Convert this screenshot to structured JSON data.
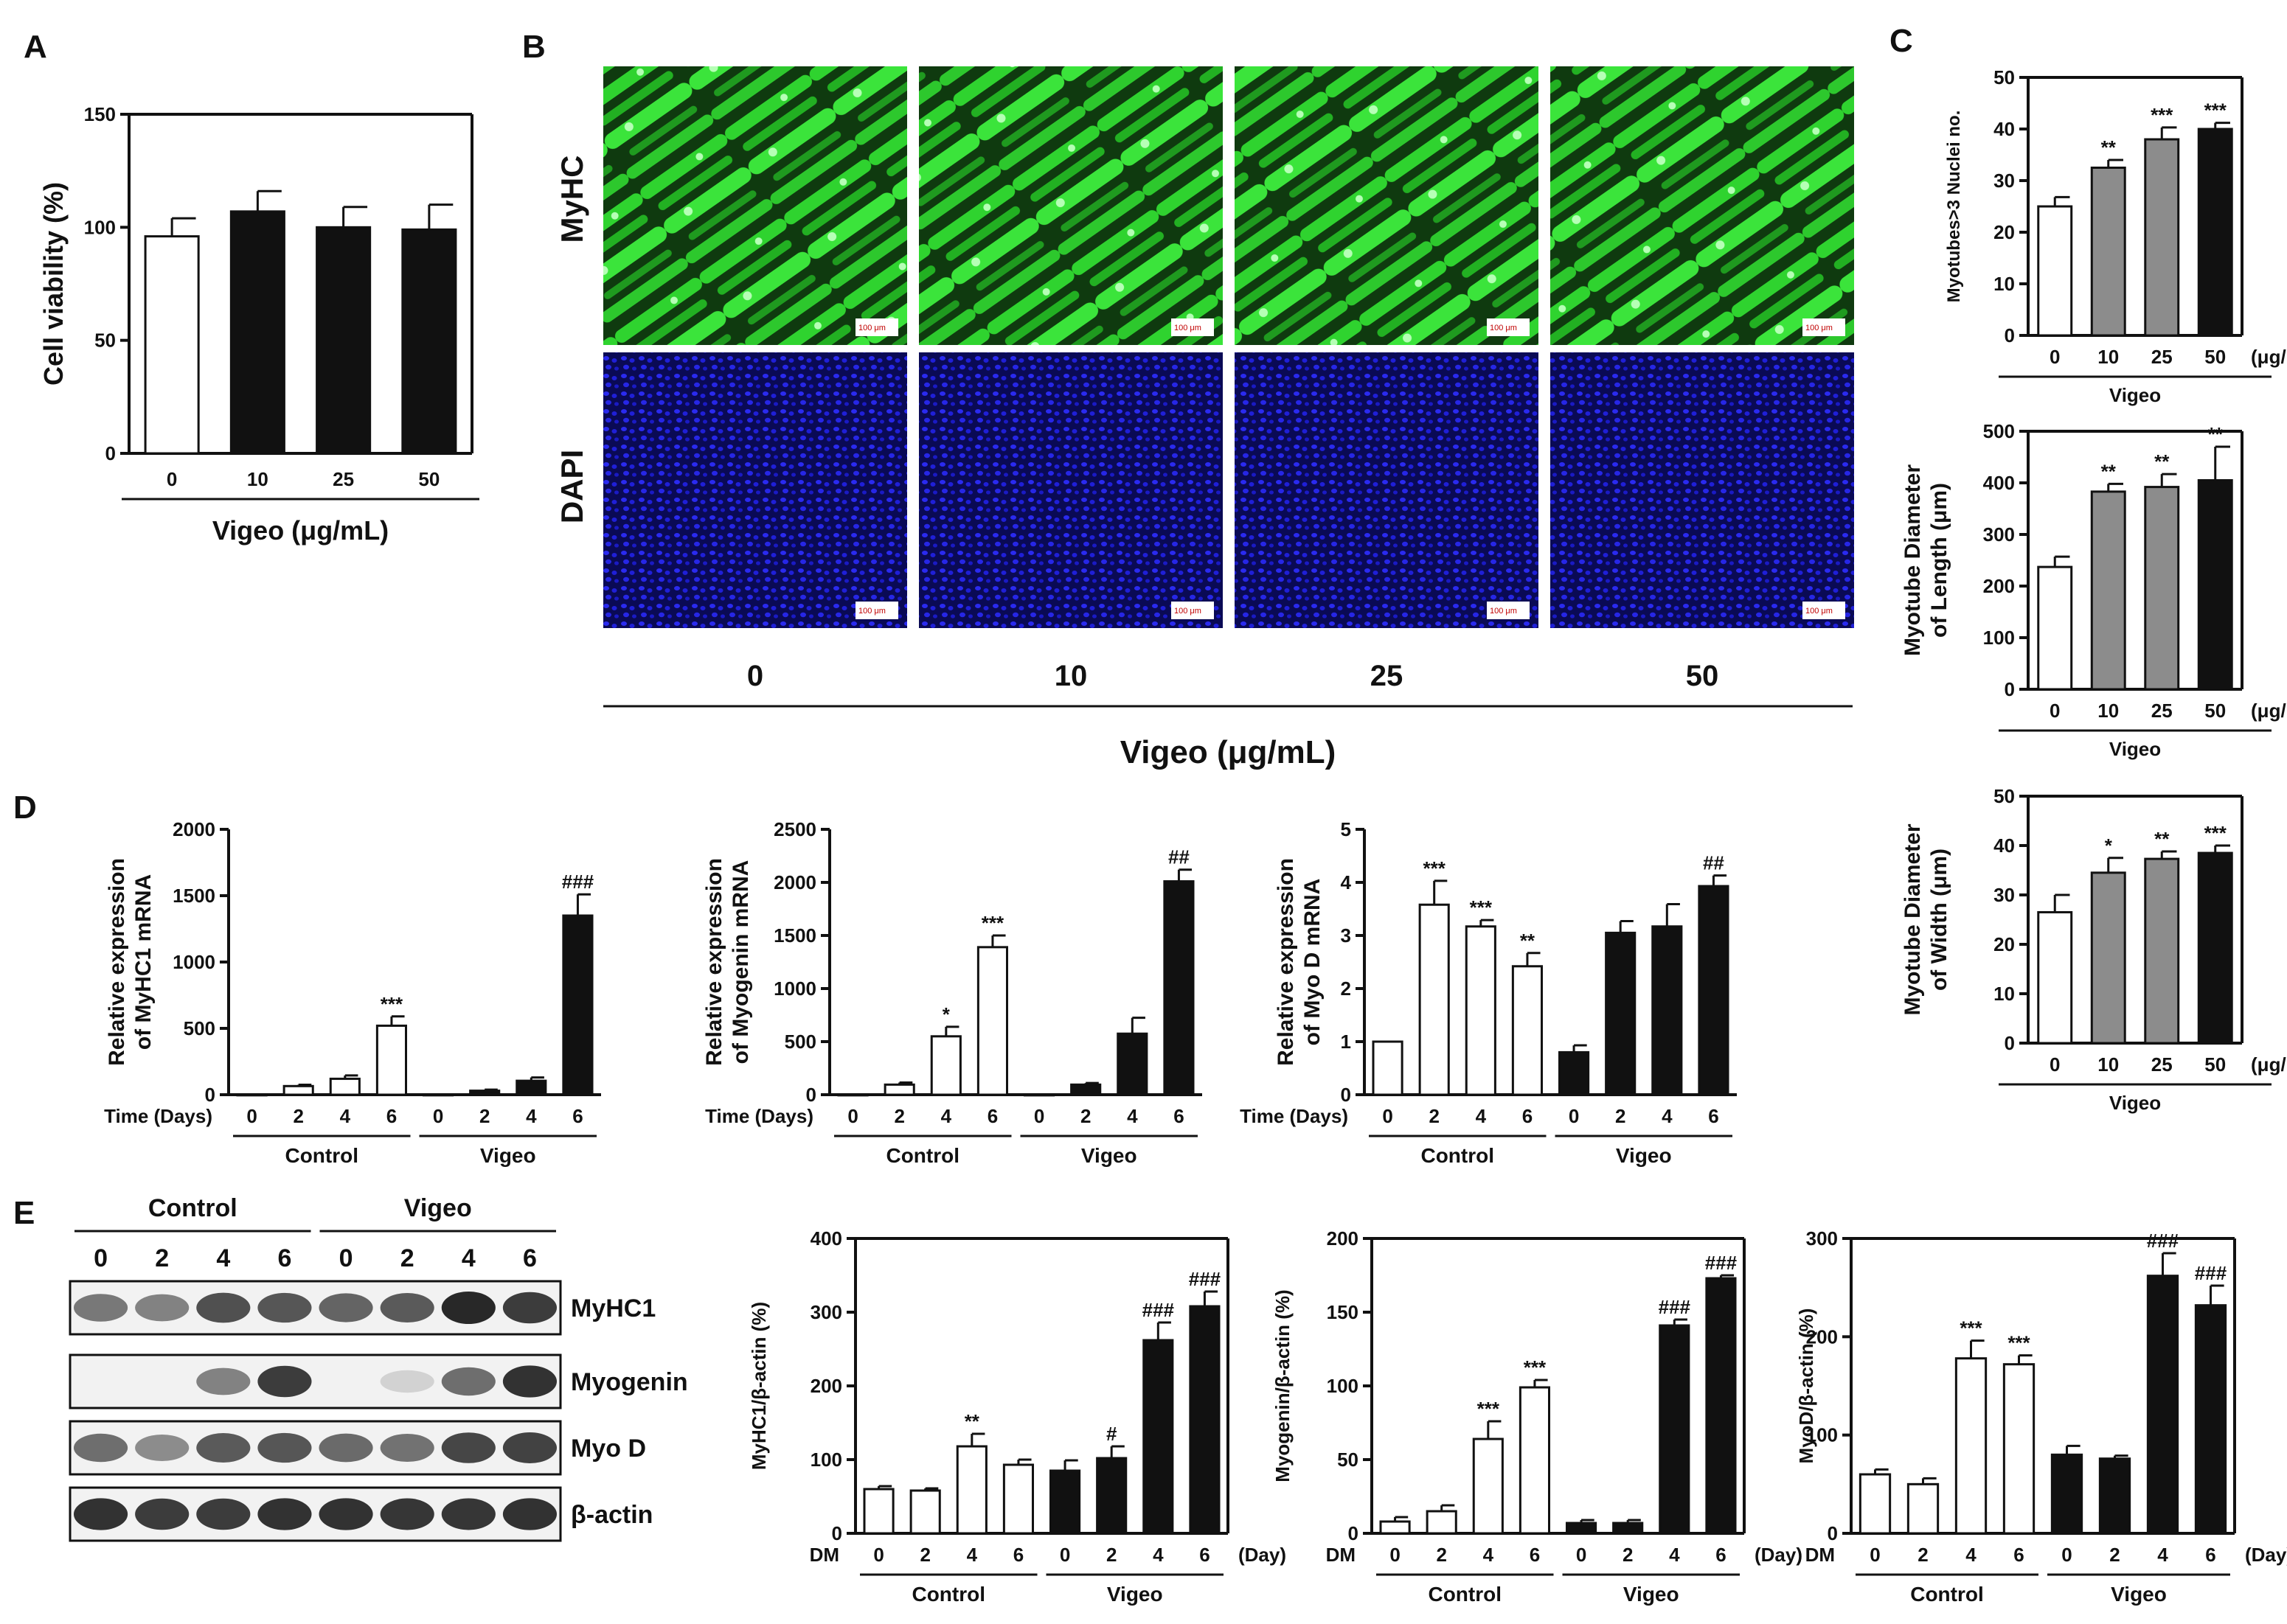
{
  "panel_labels": {
    "A": "A",
    "B": "B",
    "C": "C",
    "D": "D",
    "E": "E"
  },
  "colors": {
    "white": "#ffffff",
    "gray": "#8c8c8c",
    "black": "#111111",
    "myhc": "#2fd32f",
    "dapi": "#1a1ad8"
  },
  "panelB": {
    "row_labels": [
      "MyHC",
      "DAPI"
    ],
    "concentrations": [
      "0",
      "10",
      "25",
      "50"
    ],
    "xlabel": "Vigeo (μg/mL)",
    "scale_bar": "100 μm"
  },
  "panelE_blot": {
    "groups": [
      "Control",
      "Vigeo"
    ],
    "lanes": [
      "0",
      "2",
      "4",
      "6",
      "0",
      "2",
      "4",
      "6"
    ],
    "rows": [
      "MyHC1",
      "Myogenin",
      "Myo D",
      "β-actin"
    ],
    "intensity": [
      [
        0.55,
        0.5,
        0.75,
        0.72,
        0.65,
        0.7,
        0.95,
        0.85
      ],
      [
        0.0,
        0.0,
        0.5,
        0.85,
        0.0,
        0.1,
        0.6,
        0.9
      ],
      [
        0.6,
        0.45,
        0.7,
        0.72,
        0.62,
        0.58,
        0.8,
        0.82
      ],
      [
        0.9,
        0.85,
        0.85,
        0.9,
        0.9,
        0.88,
        0.88,
        0.9
      ]
    ]
  },
  "chart_data": [
    {
      "id": "A",
      "type": "bar",
      "ylabel": "Cell viability (%)",
      "xlabel": "Vigeo (μg/mL)",
      "ylim": [
        0,
        150
      ],
      "yticks": [
        0,
        50,
        100,
        150
      ],
      "categories": [
        "0",
        "10",
        "25",
        "50"
      ],
      "values": [
        96,
        107,
        100,
        99
      ],
      "errors": [
        8,
        9,
        9,
        11
      ],
      "fills": [
        "white",
        "black",
        "black",
        "black"
      ],
      "sig": [
        "",
        "",
        "",
        ""
      ]
    },
    {
      "id": "C1",
      "type": "bar",
      "ylabel": "Myotubes>3 Nuclei no.",
      "unit": "(μg/mL)",
      "group_label": "Vigeo",
      "ylim": [
        0,
        50
      ],
      "yticks": [
        0,
        10,
        20,
        30,
        40,
        50
      ],
      "categories": [
        "0",
        "10",
        "25",
        "50"
      ],
      "values": [
        25,
        32.5,
        38,
        40
      ],
      "errors": [
        1.8,
        1.5,
        2.3,
        1.2
      ],
      "fills": [
        "white",
        "gray",
        "gray",
        "black"
      ],
      "sig": [
        "",
        "**",
        "***",
        "***"
      ]
    },
    {
      "id": "C2",
      "type": "bar",
      "ylabel": "Myotube Diameter|of Length (μm)",
      "unit": "(μg/mL)",
      "group_label": "Vigeo",
      "ylim": [
        0,
        500
      ],
      "yticks": [
        0,
        100,
        200,
        300,
        400,
        500
      ],
      "categories": [
        "0",
        "10",
        "25",
        "50"
      ],
      "values": [
        237,
        383,
        392,
        405
      ],
      "errors": [
        20,
        15,
        25,
        65
      ],
      "fills": [
        "white",
        "gray",
        "gray",
        "black"
      ],
      "sig": [
        "",
        "**",
        "**",
        "**"
      ]
    },
    {
      "id": "C3",
      "type": "bar",
      "ylabel": "Myotube Diameter|of Width (μm)",
      "unit": "(μg/mL)",
      "group_label": "Vigeo",
      "ylim": [
        0,
        50
      ],
      "yticks": [
        0,
        10,
        20,
        30,
        40,
        50
      ],
      "categories": [
        "0",
        "10",
        "25",
        "50"
      ],
      "values": [
        26.5,
        34.5,
        37.3,
        38.5
      ],
      "errors": [
        3.5,
        3,
        1.5,
        1.5
      ],
      "fills": [
        "white",
        "gray",
        "gray",
        "black"
      ],
      "sig": [
        "",
        "*",
        "**",
        "***"
      ]
    },
    {
      "id": "D1",
      "type": "bar",
      "ylabel": "Relative expression|of MyHC1 mRNA",
      "xprefix": "Time (Days)",
      "groups": [
        "Control",
        "Vigeo"
      ],
      "ylim": [
        0,
        2000
      ],
      "yticks": [
        0,
        500,
        1000,
        1500,
        2000
      ],
      "categories": [
        "0",
        "2",
        "4",
        "6",
        "0",
        "2",
        "4",
        "6"
      ],
      "values": [
        1,
        65,
        120,
        520,
        1,
        30,
        105,
        1350
      ],
      "errors": [
        0,
        10,
        25,
        70,
        0,
        8,
        25,
        160
      ],
      "fills": [
        "white",
        "white",
        "white",
        "white",
        "black",
        "black",
        "black",
        "black"
      ],
      "sig": [
        "",
        "",
        "",
        "***",
        "",
        "",
        "",
        "###"
      ]
    },
    {
      "id": "D2",
      "type": "bar",
      "ylabel": "Relative expression|of Myogenin mRNA",
      "xprefix": "Time (Days)",
      "groups": [
        "Control",
        "Vigeo"
      ],
      "ylim": [
        0,
        2500
      ],
      "yticks": [
        0,
        500,
        1000,
        1500,
        2000,
        2500
      ],
      "categories": [
        "0",
        "2",
        "4",
        "6",
        "0",
        "2",
        "4",
        "6"
      ],
      "values": [
        1,
        95,
        550,
        1390,
        1,
        95,
        575,
        2010
      ],
      "errors": [
        0,
        20,
        90,
        110,
        0,
        15,
        150,
        110
      ],
      "fills": [
        "white",
        "white",
        "white",
        "white",
        "black",
        "black",
        "black",
        "black"
      ],
      "sig": [
        "",
        "",
        "*",
        "***",
        "",
        "",
        "",
        "##"
      ]
    },
    {
      "id": "D3",
      "type": "bar",
      "ylabel": "Relative expression|of Myo D mRNA",
      "xprefix": "Time (Days)",
      "groups": [
        "Control",
        "Vigeo"
      ],
      "ylim": [
        0,
        5
      ],
      "yticks": [
        0,
        1,
        2,
        3,
        4,
        5
      ],
      "categories": [
        "0",
        "2",
        "4",
        "6",
        "0",
        "2",
        "4",
        "6"
      ],
      "values": [
        1,
        3.58,
        3.17,
        2.42,
        0.8,
        3.05,
        3.17,
        3.93
      ],
      "errors": [
        0,
        0.45,
        0.12,
        0.25,
        0.13,
        0.22,
        0.42,
        0.2
      ],
      "fills": [
        "white",
        "white",
        "white",
        "white",
        "black",
        "black",
        "black",
        "black"
      ],
      "sig": [
        "",
        "***",
        "***",
        "**",
        "",
        "",
        "",
        "##"
      ]
    },
    {
      "id": "E1",
      "type": "bar",
      "ylabel": "MyHC1/β-actin (%)",
      "xprefix": "DM",
      "suffix": "(Day)",
      "groups": [
        "Control",
        "Vigeo"
      ],
      "ylim": [
        0,
        400
      ],
      "yticks": [
        0,
        100,
        200,
        300,
        400
      ],
      "categories": [
        "0",
        "2",
        "4",
        "6",
        "0",
        "2",
        "4",
        "6"
      ],
      "values": [
        60,
        58,
        118,
        93,
        85,
        102,
        262,
        308
      ],
      "errors": [
        4,
        3,
        17,
        7,
        14,
        16,
        24,
        20
      ],
      "fills": [
        "white",
        "white",
        "white",
        "white",
        "black",
        "black",
        "black",
        "black"
      ],
      "sig": [
        "",
        "",
        "**",
        "",
        "",
        "#",
        "###",
        "###"
      ]
    },
    {
      "id": "E2",
      "type": "bar",
      "ylabel": "Myogenin/β-actin (%)",
      "xprefix": "DM",
      "suffix": "(Day)",
      "groups": [
        "Control",
        "Vigeo"
      ],
      "ylim": [
        0,
        200
      ],
      "yticks": [
        0,
        50,
        100,
        150,
        200
      ],
      "categories": [
        "0",
        "2",
        "4",
        "6",
        "0",
        "2",
        "4",
        "6"
      ],
      "values": [
        8,
        15,
        64,
        99,
        7,
        7,
        141,
        173
      ],
      "errors": [
        3,
        4,
        12,
        5,
        2,
        2,
        4,
        2
      ],
      "fills": [
        "white",
        "white",
        "white",
        "white",
        "black",
        "black",
        "black",
        "black"
      ],
      "sig": [
        "",
        "",
        "***",
        "***",
        "",
        "",
        "###",
        "###"
      ]
    },
    {
      "id": "E3",
      "type": "bar",
      "ylabel": "MyoD/β-actin (%)",
      "xprefix": "DM",
      "suffix": "(Day)",
      "groups": [
        "Control",
        "Vigeo"
      ],
      "ylim": [
        0,
        300
      ],
      "yticks": [
        0,
        100,
        200,
        300
      ],
      "categories": [
        "0",
        "2",
        "4",
        "6",
        "0",
        "2",
        "4",
        "6"
      ],
      "values": [
        60,
        50,
        178,
        172,
        80,
        76,
        262,
        232
      ],
      "errors": [
        5,
        6,
        18,
        9,
        9,
        3,
        23,
        20
      ],
      "fills": [
        "white",
        "white",
        "white",
        "white",
        "black",
        "black",
        "black",
        "black"
      ],
      "sig": [
        "",
        "",
        "***",
        "***",
        "",
        "",
        "###",
        "###"
      ]
    }
  ]
}
